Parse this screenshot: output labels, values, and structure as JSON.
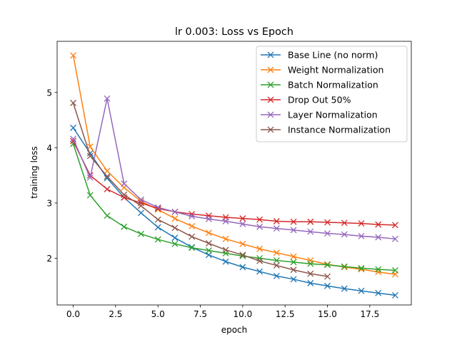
{
  "chart_data": {
    "type": "line",
    "title": "lr 0.003: Loss vs Epoch",
    "xlabel": "epoch",
    "ylabel": "training loss",
    "xlim": [
      -0.95,
      19.95
    ],
    "ylim": [
      1.155,
      5.925
    ],
    "xticks": [
      0,
      2.5,
      5,
      7.5,
      10,
      12.5,
      15,
      17.5
    ],
    "xtick_labels": [
      "0.0",
      "2.5",
      "5.0",
      "7.5",
      "10.0",
      "12.5",
      "15.0",
      "17.5"
    ],
    "yticks": [
      2,
      3,
      4,
      5
    ],
    "ytick_labels": [
      "2",
      "3",
      "4",
      "5"
    ],
    "grid": false,
    "legend_position": "top-right",
    "marker": "x",
    "series": [
      {
        "name": "Base Line (no norm)",
        "color": "#1f77b4",
        "x": [
          0,
          1,
          2,
          3,
          4,
          5,
          6,
          7,
          8,
          9,
          10,
          11,
          12,
          13,
          14,
          15,
          16,
          17,
          18,
          19
        ],
        "y": [
          4.36,
          3.9,
          3.45,
          3.1,
          2.82,
          2.56,
          2.37,
          2.2,
          2.06,
          1.94,
          1.84,
          1.76,
          1.68,
          1.62,
          1.55,
          1.5,
          1.45,
          1.41,
          1.37,
          1.33
        ]
      },
      {
        "name": "Weight Normalization",
        "color": "#ff7f0e",
        "x": [
          0,
          1,
          2,
          3,
          4,
          5,
          6,
          7,
          8,
          9,
          10,
          11,
          12,
          13,
          14,
          15,
          16,
          17,
          18,
          19
        ],
        "y": [
          5.67,
          4.02,
          3.58,
          3.28,
          3.03,
          2.88,
          2.72,
          2.58,
          2.46,
          2.35,
          2.26,
          2.17,
          2.1,
          2.03,
          1.96,
          1.89,
          1.84,
          1.8,
          1.75,
          1.71
        ]
      },
      {
        "name": "Batch Normalization",
        "color": "#2ca02c",
        "x": [
          0,
          1,
          2,
          3,
          4,
          5,
          6,
          7,
          8,
          9,
          10,
          11,
          12,
          13,
          14,
          15,
          16,
          17,
          18,
          19
        ],
        "y": [
          4.07,
          3.14,
          2.77,
          2.57,
          2.44,
          2.34,
          2.26,
          2.19,
          2.14,
          2.09,
          2.04,
          2.0,
          1.96,
          1.93,
          1.9,
          1.88,
          1.85,
          1.82,
          1.8,
          1.78
        ]
      },
      {
        "name": "Drop Out 50%",
        "color": "#d62728",
        "x": [
          0,
          1,
          2,
          3,
          4,
          5,
          6,
          7,
          8,
          9,
          10,
          11,
          12,
          13,
          14,
          15,
          16,
          17,
          18,
          19
        ],
        "y": [
          4.12,
          3.5,
          3.25,
          3.1,
          3.0,
          2.9,
          2.84,
          2.8,
          2.77,
          2.74,
          2.72,
          2.7,
          2.67,
          2.66,
          2.66,
          2.65,
          2.64,
          2.63,
          2.61,
          2.6
        ]
      },
      {
        "name": "Layer Normalization",
        "color": "#9467bd",
        "x": [
          0,
          1,
          2,
          3,
          4,
          5,
          6,
          7,
          8,
          9,
          10,
          11,
          12,
          13,
          14,
          15,
          16,
          17,
          18,
          19
        ],
        "y": [
          4.16,
          3.46,
          4.89,
          3.35,
          3.06,
          2.92,
          2.84,
          2.76,
          2.71,
          2.67,
          2.62,
          2.57,
          2.54,
          2.51,
          2.48,
          2.45,
          2.43,
          2.4,
          2.38,
          2.35
        ]
      },
      {
        "name": "Instance Normalization",
        "color": "#8c564b",
        "x": [
          0,
          1,
          2,
          3,
          4,
          5,
          6,
          7,
          8,
          9,
          10,
          11,
          12,
          13,
          14,
          15
        ],
        "y": [
          4.81,
          3.85,
          3.48,
          3.15,
          2.95,
          2.7,
          2.55,
          2.39,
          2.27,
          2.15,
          2.06,
          1.95,
          1.87,
          1.79,
          1.72,
          1.67
        ]
      }
    ]
  }
}
